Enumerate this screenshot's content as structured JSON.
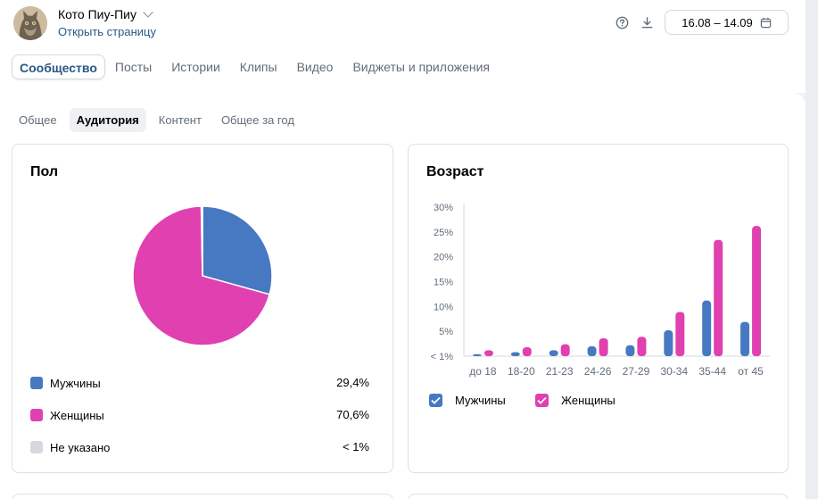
{
  "header": {
    "community_name": "Кото Пиу-Пиу",
    "open_page": "Открыть страницу",
    "date_range": "16.08 – 14.09"
  },
  "tabs_main": [
    "Сообщество",
    "Посты",
    "Истории",
    "Клипы",
    "Видео",
    "Виджеты и приложения"
  ],
  "tabs_sub": [
    "Общее",
    "Аудитория",
    "Контент",
    "Общее за год"
  ],
  "gender_card": {
    "title": "Пол",
    "items": [
      {
        "label": "Мужчины",
        "value": "29,4%",
        "color": "#4779c2"
      },
      {
        "label": "Женщины",
        "value": "70,6%",
        "color": "#e040b0"
      },
      {
        "label": "Не указано",
        "value": "< 1%",
        "color": "#d5d9de"
      }
    ]
  },
  "age_card": {
    "title": "Возраст",
    "legend": [
      "Мужчины",
      "Женщины"
    ]
  },
  "colors": {
    "male": "#4779c2",
    "female": "#e040b0",
    "accent": "#2a5885"
  },
  "chart_data": [
    {
      "type": "pie",
      "title": "Пол",
      "categories": [
        "Мужчины",
        "Женщины",
        "Не указано"
      ],
      "values": [
        29.4,
        70.6,
        0.3
      ]
    },
    {
      "type": "bar",
      "title": "Возраст",
      "categories": [
        "до 18",
        "18-20",
        "21-23",
        "24-26",
        "27-29",
        "30-34",
        "35-44",
        "от 45"
      ],
      "yticks": [
        "< 1%",
        "5%",
        "10%",
        "15%",
        "20%",
        "25%",
        "30%"
      ],
      "ylim": [
        0,
        30
      ],
      "series": [
        {
          "name": "Мужчины",
          "values": [
            0.4,
            0.8,
            1.2,
            2.0,
            2.2,
            5.2,
            11.2,
            6.9
          ]
        },
        {
          "name": "Женщины",
          "values": [
            1.2,
            1.8,
            2.4,
            3.6,
            3.9,
            8.9,
            23.4,
            26.2
          ]
        }
      ]
    }
  ]
}
